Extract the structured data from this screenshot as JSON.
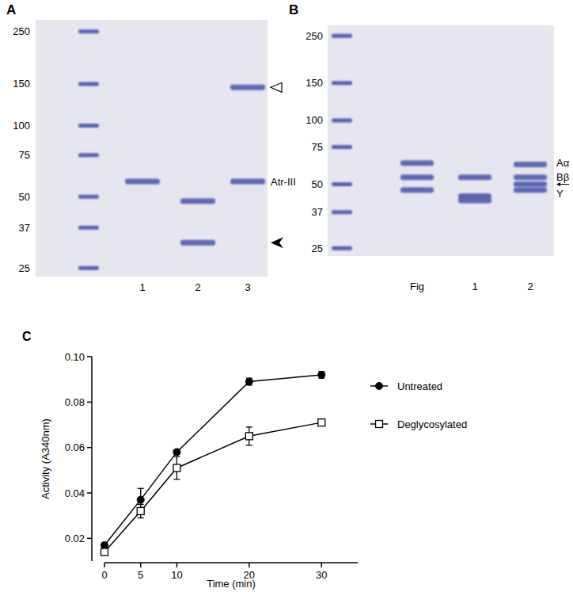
{
  "gels": [
    {
      "label": "A",
      "mw_range": [
        23,
        280
      ],
      "ladder": [
        250,
        150,
        100,
        75,
        50,
        37,
        25
      ],
      "lanes": [
        {
          "label": "1",
          "bands": [
            58
          ]
        },
        {
          "label": "2",
          "bands": [
            48,
            32
          ]
        },
        {
          "label": "3",
          "bands": [
            145,
            58
          ]
        }
      ],
      "annotations": [
        {
          "marker": "open-arrowhead",
          "kda": 145
        },
        {
          "text": "Atr-III",
          "kda": 58
        },
        {
          "marker": "arrowhead",
          "kda": 32
        }
      ]
    },
    {
      "label": "B",
      "mw_range": [
        23,
        280
      ],
      "ladder": [
        250,
        150,
        100,
        75,
        50,
        37,
        25
      ],
      "lanes": [
        {
          "label": "Fig",
          "bands": [
            63,
            54,
            47
          ]
        },
        {
          "label": "1",
          "bands": [
            54,
            44,
            42
          ]
        },
        {
          "label": "2",
          "bands": [
            62,
            54,
            50,
            47
          ]
        }
      ],
      "annotations": [
        {
          "text": "Aα",
          "kda": 63
        },
        {
          "text": "Bβ",
          "kda": 54
        },
        {
          "marker": "arrow",
          "kda": 50
        },
        {
          "text": "Y",
          "kda": 45
        }
      ]
    }
  ],
  "chart_data": {
    "type": "line",
    "title": "C",
    "x_label": "Time (min)",
    "y_label": "Activity (A340nm)",
    "x": [
      0,
      5,
      10,
      20,
      30
    ],
    "xlim": [
      0,
      35
    ],
    "xticks": [
      0,
      5,
      10,
      20,
      30
    ],
    "ylim": [
      0.01,
      0.1
    ],
    "yticks": [
      0.02,
      0.04,
      0.06,
      0.08,
      {
        "value": 0.1,
        "label": "0.10"
      }
    ],
    "legend": "right",
    "series": [
      {
        "name": "Untreated",
        "color": "#000000",
        "marker": "circle",
        "values": [
          0.017,
          0.037,
          0.058,
          0.089,
          0.092
        ],
        "errors": [
          0.001,
          0.005,
          0.001,
          0.0015,
          0.0015
        ]
      },
      {
        "name": "Deglycosylated",
        "color": "#000000",
        "marker": "square-open",
        "values": [
          0.014,
          0.032,
          0.051,
          0.065,
          0.071
        ],
        "errors": [
          0.001,
          0.003,
          0.005,
          0.004,
          0.001
        ]
      }
    ]
  }
}
